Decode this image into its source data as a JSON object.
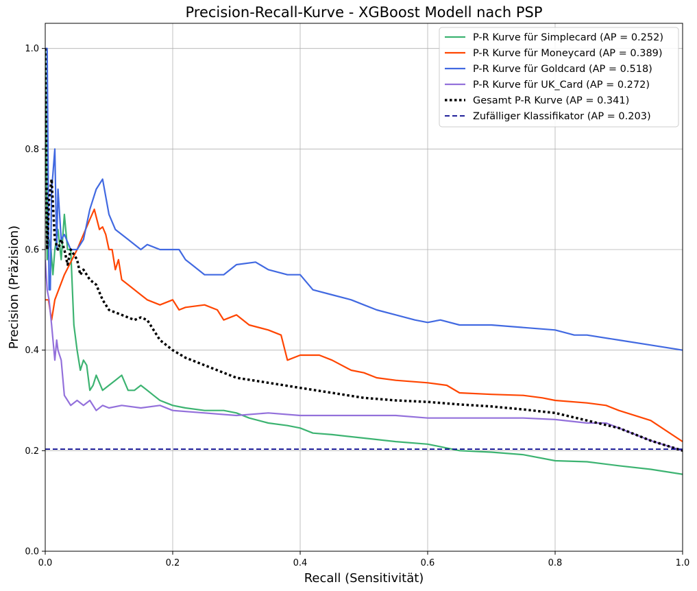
{
  "chart_data": {
    "type": "line",
    "title": "Precision-Recall-Kurve - XGBoost Modell nach PSP",
    "xlabel": "Recall (Sensitivität)",
    "ylabel": "Precision (Präzision)",
    "xlim": [
      0,
      1
    ],
    "ylim": [
      0,
      1.05
    ],
    "xticks": [
      0,
      0.2,
      0.4,
      0.6,
      0.8,
      1.0
    ],
    "yticks": [
      0,
      0.2,
      0.4,
      0.6,
      0.8,
      1.0
    ],
    "xtick_labels": [
      "0.0",
      "0.2",
      "0.4",
      "0.6",
      "0.8",
      "1.0"
    ],
    "ytick_labels": [
      "0.0",
      "0.2",
      "0.4",
      "0.6",
      "0.8",
      "1.0"
    ],
    "grid": true,
    "legend_position": "top-right",
    "series": [
      {
        "name": "P-R Kurve für Simplecard (AP = 0.252)",
        "color": "#3cb371",
        "style": "solid",
        "x": [
          0.0,
          0.003,
          0.006,
          0.009,
          0.012,
          0.015,
          0.02,
          0.025,
          0.03,
          0.035,
          0.04,
          0.045,
          0.05,
          0.055,
          0.06,
          0.065,
          0.07,
          0.075,
          0.08,
          0.09,
          0.1,
          0.11,
          0.12,
          0.13,
          0.14,
          0.15,
          0.16,
          0.17,
          0.18,
          0.19,
          0.2,
          0.22,
          0.25,
          0.28,
          0.3,
          0.32,
          0.35,
          0.38,
          0.4,
          0.42,
          0.45,
          0.5,
          0.55,
          0.6,
          0.65,
          0.7,
          0.75,
          0.8,
          0.85,
          0.9,
          0.95,
          1.0
        ],
        "y": [
          1.0,
          0.58,
          0.62,
          0.6,
          0.55,
          0.6,
          0.64,
          0.58,
          0.67,
          0.6,
          0.6,
          0.45,
          0.4,
          0.36,
          0.38,
          0.37,
          0.32,
          0.33,
          0.35,
          0.32,
          0.33,
          0.34,
          0.35,
          0.32,
          0.32,
          0.33,
          0.32,
          0.31,
          0.3,
          0.295,
          0.29,
          0.285,
          0.28,
          0.28,
          0.275,
          0.265,
          0.255,
          0.25,
          0.245,
          0.235,
          0.232,
          0.225,
          0.218,
          0.213,
          0.2,
          0.197,
          0.192,
          0.18,
          0.178,
          0.17,
          0.163,
          0.153
        ]
      },
      {
        "name": "P-R Kurve für Moneycard (AP = 0.389)",
        "color": "#ff4500",
        "style": "solid",
        "x": [
          0.0,
          0.005,
          0.01,
          0.015,
          0.03,
          0.05,
          0.07,
          0.077,
          0.085,
          0.09,
          0.095,
          0.1,
          0.105,
          0.11,
          0.115,
          0.12,
          0.13,
          0.15,
          0.16,
          0.18,
          0.2,
          0.21,
          0.22,
          0.25,
          0.27,
          0.28,
          0.3,
          0.32,
          0.35,
          0.37,
          0.38,
          0.4,
          0.43,
          0.45,
          0.48,
          0.5,
          0.52,
          0.55,
          0.6,
          0.63,
          0.65,
          0.7,
          0.75,
          0.78,
          0.8,
          0.85,
          0.88,
          0.9,
          0.95,
          1.0
        ],
        "y": [
          0.5,
          0.5,
          0.46,
          0.5,
          0.55,
          0.6,
          0.66,
          0.68,
          0.64,
          0.645,
          0.63,
          0.6,
          0.6,
          0.56,
          0.58,
          0.54,
          0.53,
          0.51,
          0.5,
          0.49,
          0.5,
          0.48,
          0.485,
          0.49,
          0.48,
          0.46,
          0.47,
          0.45,
          0.44,
          0.43,
          0.38,
          0.39,
          0.39,
          0.38,
          0.36,
          0.355,
          0.345,
          0.34,
          0.335,
          0.33,
          0.315,
          0.312,
          0.31,
          0.305,
          0.3,
          0.295,
          0.29,
          0.28,
          0.26,
          0.218
        ]
      },
      {
        "name": "P-R Kurve für Goldcard (AP = 0.518)",
        "color": "#4169e1",
        "style": "solid",
        "x": [
          0.0,
          0.003,
          0.006,
          0.008,
          0.01,
          0.012,
          0.015,
          0.018,
          0.02,
          0.025,
          0.03,
          0.04,
          0.05,
          0.06,
          0.07,
          0.08,
          0.09,
          0.1,
          0.11,
          0.12,
          0.13,
          0.15,
          0.16,
          0.18,
          0.2,
          0.21,
          0.22,
          0.23,
          0.25,
          0.28,
          0.3,
          0.33,
          0.35,
          0.38,
          0.4,
          0.42,
          0.45,
          0.48,
          0.5,
          0.52,
          0.55,
          0.58,
          0.6,
          0.62,
          0.65,
          0.7,
          0.75,
          0.8,
          0.83,
          0.85,
          0.9,
          0.95,
          1.0
        ],
        "y": [
          1.0,
          1.0,
          0.52,
          0.52,
          0.72,
          0.75,
          0.8,
          0.6,
          0.72,
          0.62,
          0.63,
          0.6,
          0.6,
          0.62,
          0.68,
          0.72,
          0.74,
          0.67,
          0.64,
          0.63,
          0.62,
          0.6,
          0.61,
          0.6,
          0.6,
          0.6,
          0.58,
          0.57,
          0.55,
          0.55,
          0.57,
          0.575,
          0.56,
          0.55,
          0.55,
          0.52,
          0.51,
          0.5,
          0.49,
          0.48,
          0.47,
          0.46,
          0.455,
          0.46,
          0.45,
          0.45,
          0.445,
          0.44,
          0.43,
          0.43,
          0.42,
          0.41,
          0.4
        ]
      },
      {
        "name": "P-R Kurve für UK_Card (AP = 0.272)",
        "color": "#9370db",
        "style": "solid",
        "x": [
          0.0,
          0.003,
          0.006,
          0.01,
          0.015,
          0.018,
          0.02,
          0.025,
          0.03,
          0.035,
          0.04,
          0.05,
          0.06,
          0.07,
          0.08,
          0.09,
          0.1,
          0.12,
          0.15,
          0.18,
          0.2,
          0.25,
          0.3,
          0.35,
          0.4,
          0.45,
          0.5,
          0.55,
          0.6,
          0.65,
          0.7,
          0.75,
          0.8,
          0.85,
          0.88,
          0.9,
          0.95,
          1.0
        ],
        "y": [
          0.58,
          0.52,
          0.5,
          0.45,
          0.38,
          0.42,
          0.4,
          0.38,
          0.31,
          0.3,
          0.29,
          0.3,
          0.29,
          0.3,
          0.28,
          0.29,
          0.285,
          0.29,
          0.285,
          0.29,
          0.28,
          0.275,
          0.27,
          0.275,
          0.27,
          0.27,
          0.27,
          0.27,
          0.265,
          0.265,
          0.265,
          0.265,
          0.262,
          0.255,
          0.255,
          0.245,
          0.22,
          0.2
        ]
      },
      {
        "name": "Gesamt P-R Kurve (AP = 0.341)",
        "color": "#000000",
        "style": "dotted",
        "x": [
          0.0,
          0.003,
          0.006,
          0.01,
          0.015,
          0.02,
          0.025,
          0.03,
          0.035,
          0.04,
          0.05,
          0.055,
          0.06,
          0.07,
          0.08,
          0.09,
          0.1,
          0.11,
          0.12,
          0.13,
          0.14,
          0.15,
          0.16,
          0.17,
          0.18,
          0.2,
          0.22,
          0.25,
          0.28,
          0.3,
          0.35,
          0.4,
          0.45,
          0.5,
          0.55,
          0.6,
          0.65,
          0.7,
          0.75,
          0.8,
          0.85,
          0.9,
          0.95,
          1.0
        ],
        "y": [
          1.0,
          0.6,
          0.7,
          0.74,
          0.62,
          0.6,
          0.62,
          0.6,
          0.57,
          0.6,
          0.58,
          0.55,
          0.56,
          0.54,
          0.53,
          0.5,
          0.48,
          0.475,
          0.47,
          0.465,
          0.46,
          0.465,
          0.46,
          0.44,
          0.42,
          0.4,
          0.385,
          0.37,
          0.355,
          0.345,
          0.335,
          0.325,
          0.315,
          0.305,
          0.3,
          0.297,
          0.292,
          0.288,
          0.282,
          0.275,
          0.26,
          0.245,
          0.22,
          0.2
        ]
      },
      {
        "name": "Zufälliger Klassifikator (AP = 0.203)",
        "color": "#00008b",
        "style": "dashed",
        "x": [
          0.0,
          1.0
        ],
        "y": [
          0.203,
          0.203
        ]
      }
    ]
  }
}
